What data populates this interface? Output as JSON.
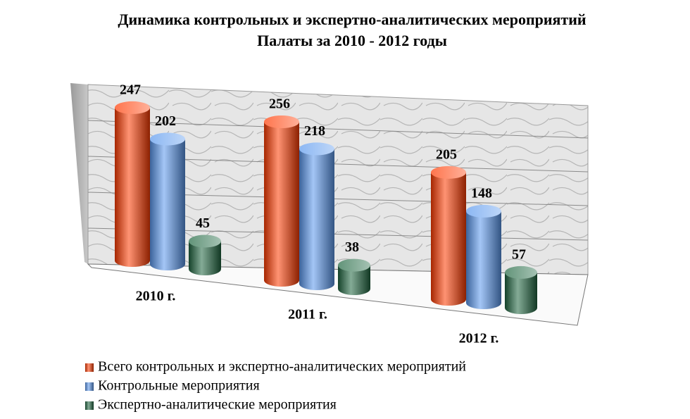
{
  "chart_data": {
    "type": "bar3d",
    "title": [
      "Динамика контрольных и экспертно-аналитических мероприятий",
      "Палаты за 2010 - 2012 годы"
    ],
    "categories": [
      "2010 г.",
      "2011 г.",
      "2012 г."
    ],
    "series": [
      {
        "name": "Всего контрольных и экспертно-аналитических мероприятий",
        "color": "#ff3a00",
        "values": [
          247,
          256,
          205
        ]
      },
      {
        "name": "Контрольные мероприятия",
        "color": "#5a98ee",
        "values": [
          202,
          218,
          148
        ]
      },
      {
        "name": "Экспертно-аналитические мероприятия",
        "color": "#1f6640",
        "values": [
          45,
          38,
          57
        ]
      }
    ]
  }
}
